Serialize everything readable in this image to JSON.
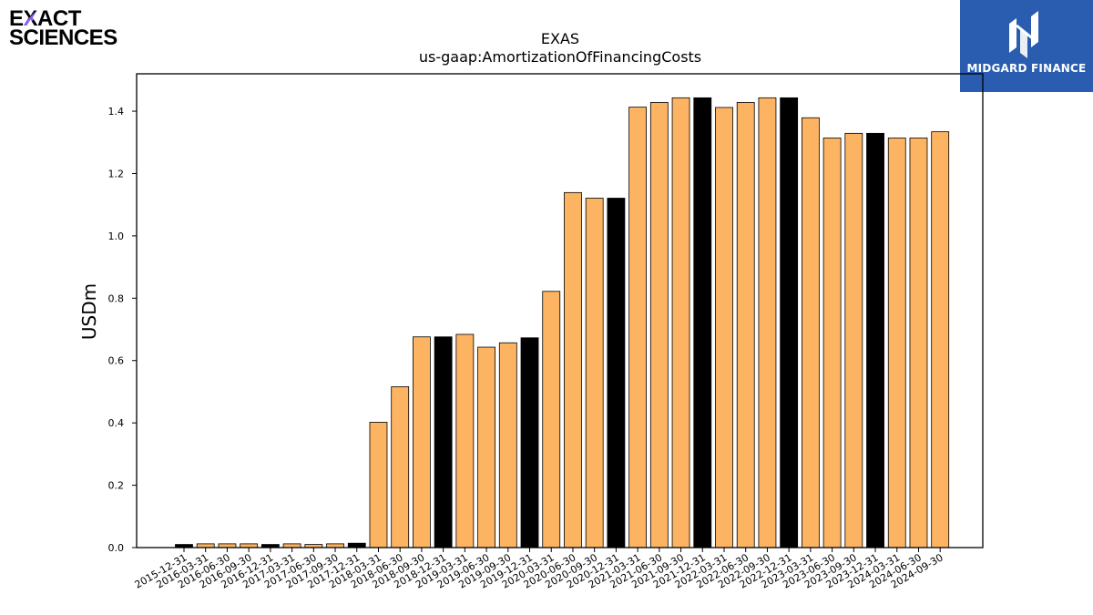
{
  "branding": {
    "left_logo_line1": "EXACT",
    "left_logo_line2": "SCIENCES",
    "right_logo_text": "MIDGARD FINANCE",
    "right_logo_bg": "#2a5db0",
    "accent_purple": "#8a5cf6"
  },
  "chart_data": {
    "type": "bar",
    "title": "EXAS",
    "subtitle": "us-gaap:AmortizationOfFinancingCosts",
    "xlabel": "",
    "ylabel": "USDm",
    "ylim": [
      0,
      1.52
    ],
    "yticks": [
      0.0,
      0.2,
      0.4,
      0.6,
      0.8,
      1.0,
      1.2,
      1.4
    ],
    "grid": false,
    "colors": {
      "quarter": "#fdb462",
      "year_end": "#000000",
      "edge": "#000000"
    },
    "categories": [
      "2015-12-31",
      "2016-03-31",
      "2016-06-30",
      "2016-09-30",
      "2016-12-31",
      "2017-03-31",
      "2017-06-30",
      "2017-09-30",
      "2017-12-31",
      "2018-03-31",
      "2018-06-30",
      "2018-09-30",
      "2018-12-31",
      "2019-03-31",
      "2019-06-30",
      "2019-09-30",
      "2019-12-31",
      "2020-03-31",
      "2020-06-30",
      "2020-09-30",
      "2020-12-31",
      "2021-03-31",
      "2021-06-30",
      "2021-09-30",
      "2021-12-31",
      "2022-03-31",
      "2022-06-30",
      "2022-09-30",
      "2022-12-31",
      "2023-03-31",
      "2023-06-30",
      "2023-09-30",
      "2023-12-31",
      "2024-03-31",
      "2024-06-30",
      "2024-09-30"
    ],
    "values": [
      0.01,
      0.012,
      0.012,
      0.012,
      0.01,
      0.012,
      0.01,
      0.012,
      0.014,
      0.402,
      0.516,
      0.676,
      0.676,
      0.684,
      0.643,
      0.657,
      0.673,
      0.822,
      1.139,
      1.121,
      1.121,
      1.413,
      1.428,
      1.443,
      1.443,
      1.412,
      1.428,
      1.443,
      1.443,
      1.379,
      1.314,
      1.329,
      1.329,
      1.314,
      1.314,
      1.334
    ],
    "year_end": [
      true,
      false,
      false,
      false,
      true,
      false,
      false,
      false,
      true,
      false,
      false,
      false,
      true,
      false,
      false,
      false,
      true,
      false,
      false,
      false,
      true,
      false,
      false,
      false,
      true,
      false,
      false,
      false,
      true,
      false,
      false,
      false,
      true,
      false,
      false,
      false
    ]
  }
}
